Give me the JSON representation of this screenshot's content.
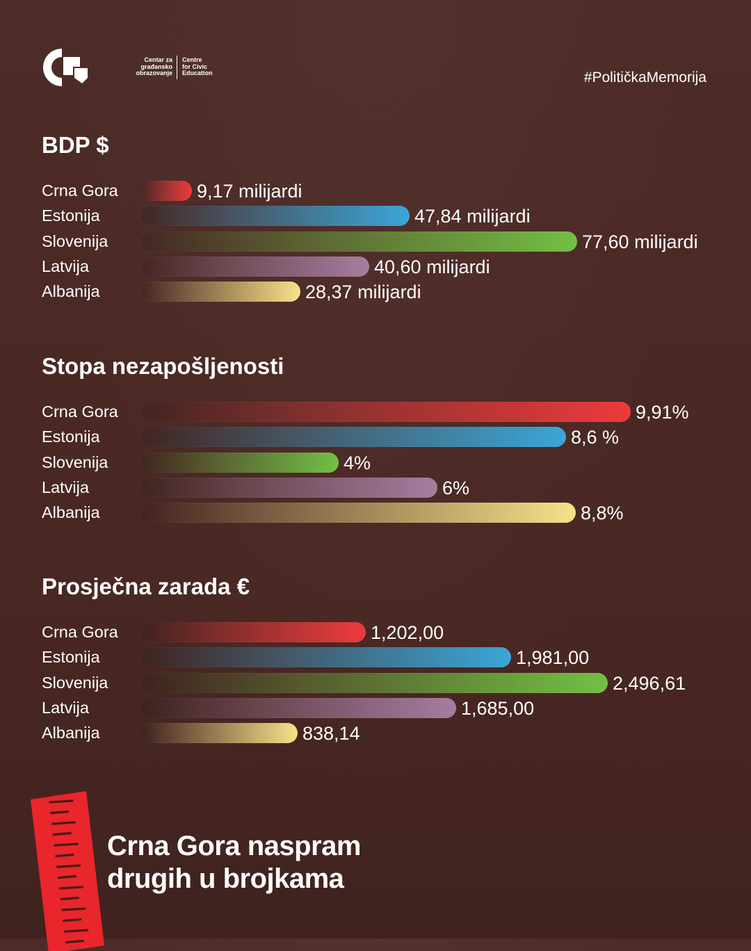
{
  "header": {
    "logo_left_lines": [
      "Centar za",
      "građansko",
      "obrazovanje"
    ],
    "logo_right_lines": [
      "Centre",
      "for Civic",
      "Education"
    ],
    "hashtag": "#PolitičkaMemorija"
  },
  "colors": {
    "background": "#4a2a26",
    "Crna Gora": "#ee3a3c",
    "Estonija": "#3aa6d8",
    "Slovenija": "#72c044",
    "Latvija": "#a67da1",
    "Albanija": "#f7e189"
  },
  "chart_data": [
    {
      "type": "bar",
      "orientation": "horizontal",
      "title": "BDP $",
      "categories": [
        "Crna Gora",
        "Estonija",
        "Slovenija",
        "Latvija",
        "Albanija"
      ],
      "values": [
        9.17,
        47.84,
        77.6,
        40.6,
        28.37
      ],
      "value_labels": [
        "9,17 milijardi",
        "47,84 milijardi",
        "77,60 milijardi",
        "40,60 milijardi",
        "28,37 milijardi"
      ]
    },
    {
      "type": "bar",
      "orientation": "horizontal",
      "title": "Stopa nezapošljenosti",
      "categories": [
        "Crna Gora",
        "Estonija",
        "Slovenija",
        "Latvija",
        "Albanija"
      ],
      "values": [
        9.91,
        8.6,
        4,
        6,
        8.8
      ],
      "value_labels": [
        "9,91%",
        "8,6 %",
        "4%",
        "6%",
        "8,8%"
      ]
    },
    {
      "type": "bar",
      "orientation": "horizontal",
      "title": "Prosječna zarada €",
      "categories": [
        "Crna Gora",
        "Estonija",
        "Slovenija",
        "Latvija",
        "Albanija"
      ],
      "values": [
        1202.0,
        1981.0,
        2496.61,
        1685.0,
        838.14
      ],
      "value_labels": [
        "1,202,00",
        "1,981,00",
        "2,496,61",
        "1,685,00",
        "838,14"
      ]
    }
  ],
  "footer": {
    "title_lines": [
      "Crna Gora naspram",
      "drugih u brojkama"
    ]
  }
}
